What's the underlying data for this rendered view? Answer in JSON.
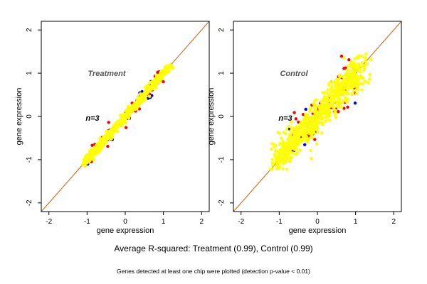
{
  "figure": {
    "caption": "Average R-squared: Treatment (0.99), Control (0.99)",
    "footnote": "Genes detected at least one chip were plotted (detection p-value < 0.01)"
  },
  "colors": {
    "diagonal": "#d2691e",
    "points_main": "#ffff00",
    "points_red": "#ff0000",
    "points_blue": "#0000ff",
    "panel_border": "#000000"
  },
  "chart_data": [
    {
      "type": "scatter",
      "title": "Treatment",
      "annotation": "n=3",
      "xlabel": "gene expression",
      "ylabel": "gene expression",
      "xlim": [
        -2.2,
        2.2
      ],
      "ylim": [
        -2.2,
        2.2
      ],
      "xticks": [
        "-2",
        "-1",
        "0",
        "1",
        "2"
      ],
      "yticks": [
        "-2",
        "-1",
        "0",
        "1",
        "2"
      ],
      "reference_line": "y = x",
      "series": [
        {
          "color": "yellow",
          "spread": 0.045,
          "x": [
            -1.1,
            1.2
          ],
          "note_points": 400
        },
        {
          "color": "red",
          "spread": 0.09,
          "x": [
            -0.9,
            1.0
          ],
          "note_points": 60
        },
        {
          "color": "blue",
          "spread": 0.08,
          "x": [
            -1.0,
            0.7
          ],
          "note_points": 20
        }
      ]
    },
    {
      "type": "scatter",
      "title": "Control",
      "annotation": "n=3",
      "xlabel": "gene expression",
      "ylabel": "gene expression",
      "xlim": [
        -2.2,
        2.2
      ],
      "ylim": [
        -2.2,
        2.2
      ],
      "xticks": [
        "-2",
        "-1",
        "0",
        "1",
        "2"
      ],
      "yticks": [
        "-2",
        "-1",
        "0",
        "1",
        "2"
      ],
      "reference_line": "y = x",
      "series": [
        {
          "color": "yellow",
          "spread": 0.16,
          "x": [
            -1.1,
            1.2
          ],
          "note_points": 500
        },
        {
          "color": "red",
          "spread": 0.22,
          "x": [
            -0.8,
            1.0
          ],
          "note_points": 60
        },
        {
          "color": "blue",
          "spread": 0.18,
          "x": [
            -0.8,
            0.9
          ],
          "note_points": 15
        }
      ]
    }
  ]
}
